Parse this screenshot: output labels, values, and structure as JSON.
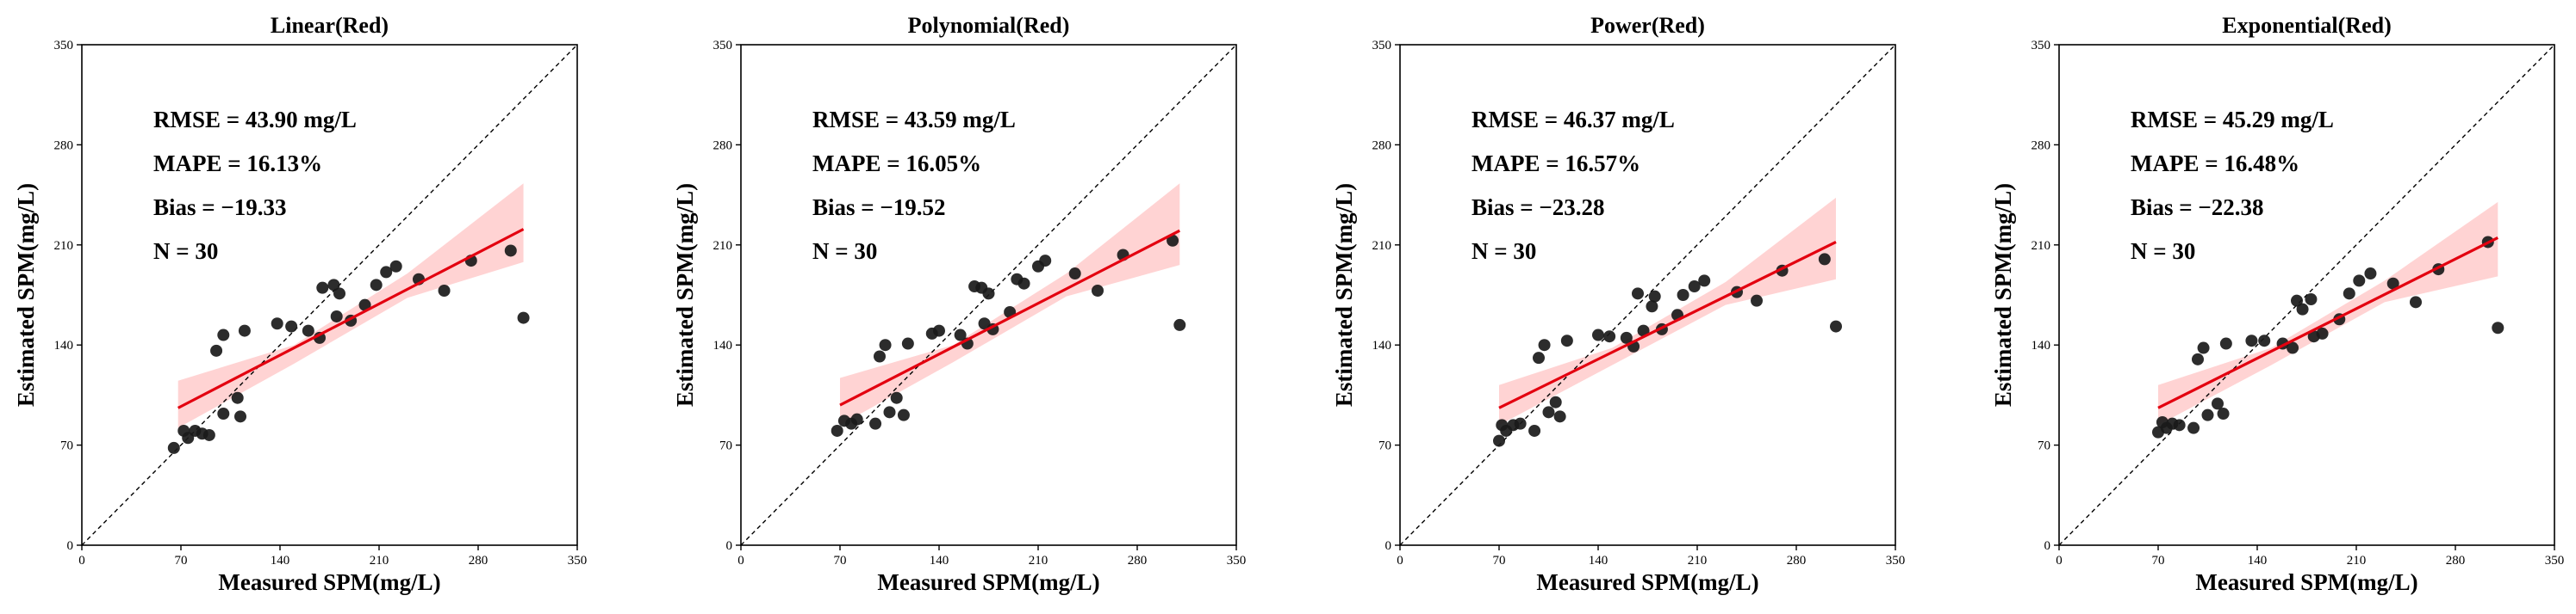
{
  "chart_data": [
    {
      "type": "scatter",
      "title": "Linear(Red)",
      "xlabel": "Measured SPM(mg/L)",
      "ylabel": "Estimated SPM(mg/L)",
      "xlim": [
        0,
        350
      ],
      "ylim": [
        0,
        350
      ],
      "xticks": [
        0,
        70,
        140,
        210,
        280,
        350
      ],
      "yticks": [
        0,
        70,
        140,
        210,
        280,
        350
      ],
      "grid": false,
      "stats": [
        "RMSE = 43.90 mg/L",
        "MAPE = 16.13%",
        "Bias = −19.33",
        "N = 30"
      ],
      "reference_line": "1:1",
      "fit": {
        "x": [
          68,
          312
        ],
        "y": [
          96,
          221
        ]
      },
      "band": {
        "x": [
          68,
          150,
          230,
          312
        ],
        "lower": [
          82,
          127,
          173,
          198
        ],
        "upper": [
          115,
          140,
          190,
          253
        ]
      },
      "points": [
        [
          65,
          68
        ],
        [
          72,
          80
        ],
        [
          75,
          75
        ],
        [
          80,
          80
        ],
        [
          85,
          78
        ],
        [
          90,
          77
        ],
        [
          95,
          136
        ],
        [
          100,
          92
        ],
        [
          100,
          147
        ],
        [
          110,
          103
        ],
        [
          112,
          90
        ],
        [
          115,
          150
        ],
        [
          138,
          155
        ],
        [
          148,
          153
        ],
        [
          160,
          150
        ],
        [
          168,
          145
        ],
        [
          170,
          180
        ],
        [
          178,
          182
        ],
        [
          180,
          160
        ],
        [
          182,
          176
        ],
        [
          190,
          157
        ],
        [
          200,
          168
        ],
        [
          208,
          182
        ],
        [
          215,
          191
        ],
        [
          222,
          195
        ],
        [
          238,
          186
        ],
        [
          256,
          178
        ],
        [
          275,
          199
        ],
        [
          303,
          206
        ],
        [
          312,
          159
        ]
      ]
    },
    {
      "type": "scatter",
      "title": "Polynomial(Red)",
      "xlabel": "Measured SPM(mg/L)",
      "ylabel": "Estimated SPM(mg/L)",
      "xlim": [
        0,
        350
      ],
      "ylim": [
        0,
        350
      ],
      "xticks": [
        0,
        70,
        140,
        210,
        280,
        350
      ],
      "yticks": [
        0,
        70,
        140,
        210,
        280,
        350
      ],
      "grid": false,
      "stats": [
        "RMSE = 43.59 mg/L",
        "MAPE = 16.05%",
        "Bias = −19.52",
        "N = 30"
      ],
      "reference_line": "1:1",
      "fit": {
        "x": [
          70,
          310
        ],
        "y": [
          98,
          220
        ]
      },
      "band": {
        "x": [
          70,
          150,
          230,
          310
        ],
        "lower": [
          84,
          128,
          174,
          196
        ],
        "upper": [
          117,
          140,
          190,
          253
        ]
      },
      "points": [
        [
          68,
          80
        ],
        [
          73,
          87
        ],
        [
          78,
          85
        ],
        [
          82,
          88
        ],
        [
          95,
          85
        ],
        [
          98,
          132
        ],
        [
          102,
          140
        ],
        [
          105,
          93
        ],
        [
          110,
          103
        ],
        [
          115,
          91
        ],
        [
          118,
          141
        ],
        [
          135,
          148
        ],
        [
          140,
          150
        ],
        [
          155,
          147
        ],
        [
          160,
          141
        ],
        [
          165,
          181
        ],
        [
          170,
          180
        ],
        [
          172,
          155
        ],
        [
          175,
          176
        ],
        [
          178,
          151
        ],
        [
          190,
          163
        ],
        [
          195,
          186
        ],
        [
          200,
          183
        ],
        [
          210,
          195
        ],
        [
          215,
          199
        ],
        [
          236,
          190
        ],
        [
          252,
          178
        ],
        [
          270,
          203
        ],
        [
          305,
          213
        ],
        [
          310,
          154
        ]
      ]
    },
    {
      "type": "scatter",
      "title": "Power(Red)",
      "xlabel": "Measured SPM(mg/L)",
      "ylabel": "Estimated SPM(mg/L)",
      "xlim": [
        0,
        350
      ],
      "ylim": [
        0,
        350
      ],
      "xticks": [
        0,
        70,
        140,
        210,
        280,
        350
      ],
      "yticks": [
        0,
        70,
        140,
        210,
        280,
        350
      ],
      "grid": false,
      "stats": [
        "RMSE = 46.37 mg/L",
        "MAPE = 16.57%",
        "Bias = −23.28",
        "N = 30"
      ],
      "reference_line": "1:1",
      "fit": {
        "x": [
          70,
          308
        ],
        "y": [
          96,
          212
        ]
      },
      "band": {
        "x": [
          70,
          150,
          230,
          308
        ],
        "lower": [
          84,
          126,
          168,
          186
        ],
        "upper": [
          112,
          138,
          184,
          243
        ]
      },
      "points": [
        [
          70,
          73
        ],
        [
          72,
          84
        ],
        [
          75,
          80
        ],
        [
          80,
          84
        ],
        [
          85,
          85
        ],
        [
          95,
          80
        ],
        [
          98,
          131
        ],
        [
          102,
          140
        ],
        [
          105,
          93
        ],
        [
          110,
          100
        ],
        [
          113,
          90
        ],
        [
          118,
          143
        ],
        [
          140,
          147
        ],
        [
          148,
          146
        ],
        [
          160,
          145
        ],
        [
          165,
          139
        ],
        [
          168,
          176
        ],
        [
          172,
          150
        ],
        [
          178,
          167
        ],
        [
          180,
          174
        ],
        [
          185,
          151
        ],
        [
          196,
          161
        ],
        [
          200,
          175
        ],
        [
          208,
          181
        ],
        [
          215,
          185
        ],
        [
          238,
          177
        ],
        [
          252,
          171
        ],
        [
          270,
          192
        ],
        [
          300,
          200
        ],
        [
          308,
          153
        ]
      ]
    },
    {
      "type": "scatter",
      "title": "Exponential(Red)",
      "xlabel": "Measured SPM(mg/L)",
      "ylabel": "Estimated SPM(mg/L)",
      "xlim": [
        0,
        350
      ],
      "ylim": [
        0,
        350
      ],
      "xticks": [
        0,
        70,
        140,
        210,
        280,
        350
      ],
      "yticks": [
        0,
        70,
        140,
        210,
        280,
        350
      ],
      "grid": false,
      "stats": [
        "RMSE = 45.29 mg/L",
        "MAPE = 16.48%",
        "Bias = −22.38",
        "N = 30"
      ],
      "reference_line": "1:1",
      "fit": {
        "x": [
          70,
          310
        ],
        "y": [
          96,
          215
        ]
      },
      "band": {
        "x": [
          70,
          150,
          230,
          310
        ],
        "lower": [
          84,
          126,
          170,
          188
        ],
        "upper": [
          112,
          138,
          185,
          240
        ]
      },
      "points": [
        [
          70,
          79
        ],
        [
          73,
          86
        ],
        [
          76,
          82
        ],
        [
          80,
          85
        ],
        [
          85,
          84
        ],
        [
          95,
          82
        ],
        [
          98,
          130
        ],
        [
          102,
          138
        ],
        [
          105,
          91
        ],
        [
          112,
          99
        ],
        [
          116,
          92
        ],
        [
          118,
          141
        ],
        [
          136,
          143
        ],
        [
          145,
          143
        ],
        [
          158,
          141
        ],
        [
          165,
          138
        ],
        [
          168,
          171
        ],
        [
          172,
          165
        ],
        [
          178,
          172
        ],
        [
          180,
          146
        ],
        [
          186,
          148
        ],
        [
          198,
          158
        ],
        [
          205,
          176
        ],
        [
          212,
          185
        ],
        [
          220,
          190
        ],
        [
          236,
          183
        ],
        [
          252,
          170
        ],
        [
          268,
          193
        ],
        [
          303,
          212
        ],
        [
          310,
          152
        ]
      ]
    }
  ]
}
